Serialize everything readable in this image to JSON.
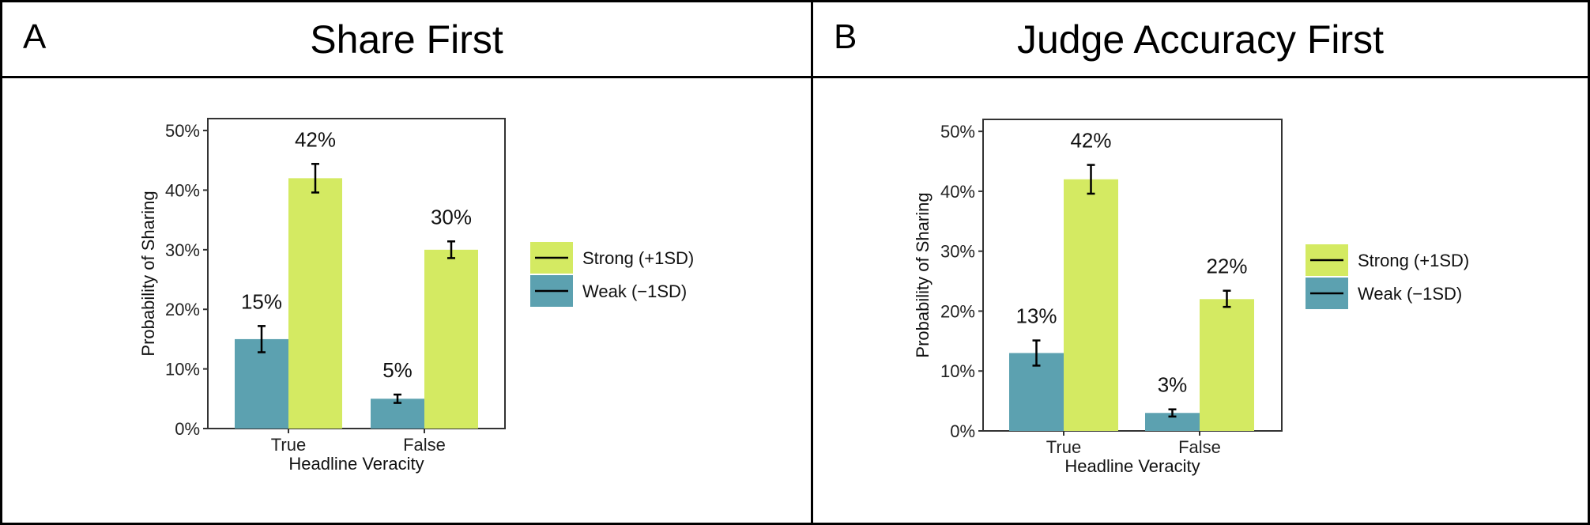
{
  "colors": {
    "strong": "#d4ea62",
    "weak": "#5ca1b0",
    "errorbar": "#000000",
    "axis": "#333333"
  },
  "chart_data": [
    {
      "type": "bar",
      "panel_label": "A",
      "title": "Share First",
      "xlabel": "Headline Veracity",
      "ylabel": "Probability of Sharing",
      "categories": [
        "True",
        "False"
      ],
      "ylim": [
        0,
        52
      ],
      "yticks": [
        0,
        10,
        20,
        30,
        40,
        50
      ],
      "ytick_labels": [
        "0%",
        "10%",
        "20%",
        "30%",
        "40%",
        "50%"
      ],
      "series": [
        {
          "name": "Weak (−1SD)",
          "values": [
            15,
            5
          ],
          "error_low": [
            12.8,
            4.3
          ],
          "error_high": [
            17.2,
            5.7
          ],
          "data_labels": [
            "15%",
            "5%"
          ]
        },
        {
          "name": "Strong (+1SD)",
          "values": [
            42,
            30
          ],
          "error_low": [
            39.6,
            28.6
          ],
          "error_high": [
            44.4,
            31.4
          ],
          "data_labels": [
            "42%",
            "30%"
          ]
        }
      ],
      "legend_order": [
        "Strong (+1SD)",
        "Weak (−1SD)"
      ],
      "legend_position": "right",
      "grid": false
    },
    {
      "type": "bar",
      "panel_label": "B",
      "title": "Judge Accuracy First",
      "xlabel": "Headline Veracity",
      "ylabel": "Probability of Sharing",
      "categories": [
        "True",
        "False"
      ],
      "ylim": [
        0,
        52
      ],
      "yticks": [
        0,
        10,
        20,
        30,
        40,
        50
      ],
      "ytick_labels": [
        "0%",
        "10%",
        "20%",
        "30%",
        "40%",
        "50%"
      ],
      "series": [
        {
          "name": "Weak (−1SD)",
          "values": [
            13,
            3
          ],
          "error_low": [
            10.9,
            2.4
          ],
          "error_high": [
            15.1,
            3.6
          ],
          "data_labels": [
            "13%",
            "3%"
          ]
        },
        {
          "name": "Strong (+1SD)",
          "values": [
            42,
            22
          ],
          "error_low": [
            39.6,
            20.7
          ],
          "error_high": [
            44.4,
            23.4
          ],
          "data_labels": [
            "42%",
            "22%"
          ]
        }
      ],
      "legend_order": [
        "Strong (+1SD)",
        "Weak (−1SD)"
      ],
      "legend_position": "right",
      "grid": false
    }
  ]
}
